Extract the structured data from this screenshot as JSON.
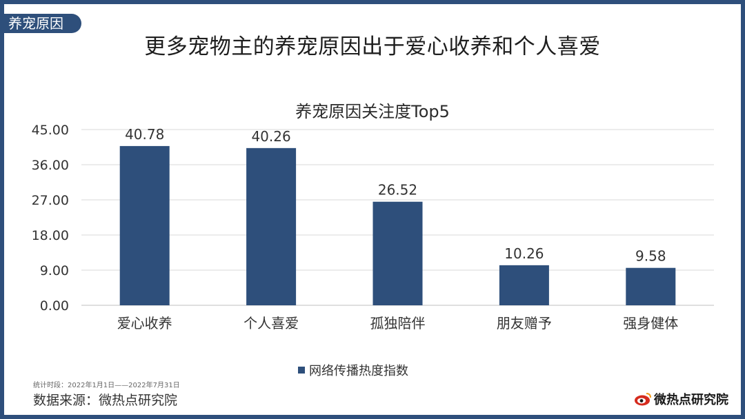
{
  "section_tag": "养宠原因",
  "headline": "更多宠物主的养宠原因出于爱心收养和个人喜爱",
  "footer": {
    "stat_period": "统计时段：2022年1月1日——2022年7月31日",
    "source": "数据来源：微热点研究院",
    "brand": "微热点研究院",
    "brand_icon": "weibo-eye-logo-icon"
  },
  "colors": {
    "frame": "#2e4f7b",
    "bar": "#2e4f7b",
    "grid": "#d9d9d9"
  },
  "chart_data": {
    "type": "bar",
    "title": "养宠原因关注度Top5",
    "categories": [
      "爱心收养",
      "个人喜爱",
      "孤独陪伴",
      "朋友赠予",
      "强身健体"
    ],
    "series": [
      {
        "name": "网络传播热度指数",
        "values": [
          40.78,
          40.26,
          26.52,
          10.26,
          9.58
        ]
      }
    ],
    "data_labels": [
      "40.78",
      "40.26",
      "26.52",
      "10.26",
      "9.58"
    ],
    "y_ticks": [
      "0.00",
      "9.00",
      "18.00",
      "27.00",
      "36.00",
      "45.00"
    ],
    "ylim": [
      0,
      45
    ],
    "grid": true,
    "legend": "bottom"
  }
}
